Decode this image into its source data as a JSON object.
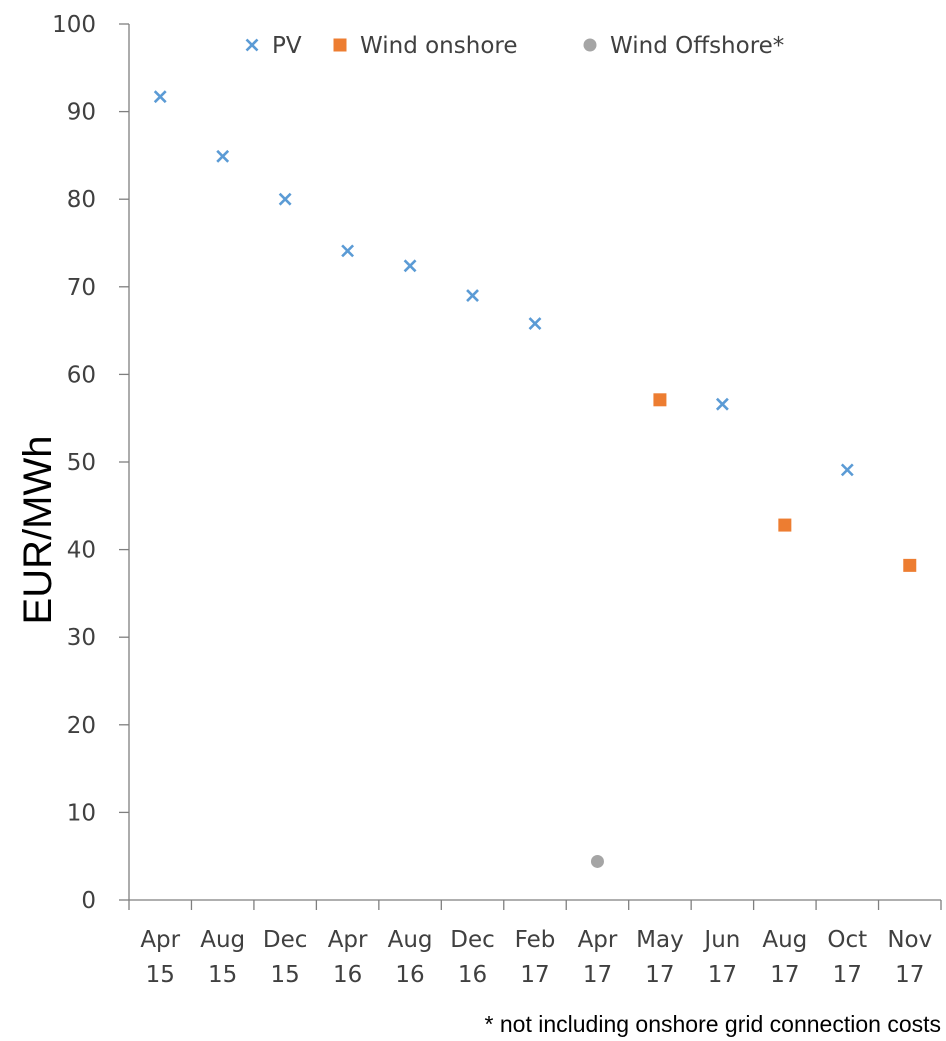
{
  "chart_data": {
    "type": "scatter",
    "ylabel": "EUR/MWh",
    "ylim": [
      0,
      100
    ],
    "yticks": [
      "0",
      "10",
      "20",
      "30",
      "40",
      "50",
      "60",
      "70",
      "80",
      "90",
      "100"
    ],
    "categories": [
      [
        "Apr",
        "15"
      ],
      [
        "Aug",
        "15"
      ],
      [
        "Dec",
        "15"
      ],
      [
        "Apr",
        "16"
      ],
      [
        "Aug",
        "16"
      ],
      [
        "Dec",
        "16"
      ],
      [
        "Feb",
        "17"
      ],
      [
        "Apr",
        "17"
      ],
      [
        "May",
        "17"
      ],
      [
        "Jun",
        "17"
      ],
      [
        "Aug",
        "17"
      ],
      [
        "Oct",
        "17"
      ],
      [
        "Nov",
        "17"
      ]
    ],
    "series": [
      {
        "name": "PV",
        "marker": "x",
        "color": "#5b9bd5",
        "points": [
          {
            "x": "Apr 15",
            "y": 91.7
          },
          {
            "x": "Aug 15",
            "y": 84.9
          },
          {
            "x": "Dec 15",
            "y": 80.0
          },
          {
            "x": "Apr 16",
            "y": 74.1
          },
          {
            "x": "Aug 16",
            "y": 72.4
          },
          {
            "x": "Dec 16",
            "y": 69.0
          },
          {
            "x": "Feb 17",
            "y": 65.8
          },
          {
            "x": "Jun 17",
            "y": 56.6
          },
          {
            "x": "Oct 17",
            "y": 49.1
          }
        ]
      },
      {
        "name": "Wind onshore",
        "marker": "square",
        "color": "#ed7d31",
        "points": [
          {
            "x": "May 17",
            "y": 57.1
          },
          {
            "x": "Aug 17",
            "y": 42.8
          },
          {
            "x": "Nov 17",
            "y": 38.2
          }
        ]
      },
      {
        "name": "Wind Offshore*",
        "marker": "circle",
        "color": "#a5a5a5",
        "points": [
          {
            "x": "Apr 17",
            "y": 4.4
          }
        ]
      }
    ],
    "legend_position": "top",
    "grid": false,
    "footnote": "* not including onshore grid connection costs"
  }
}
